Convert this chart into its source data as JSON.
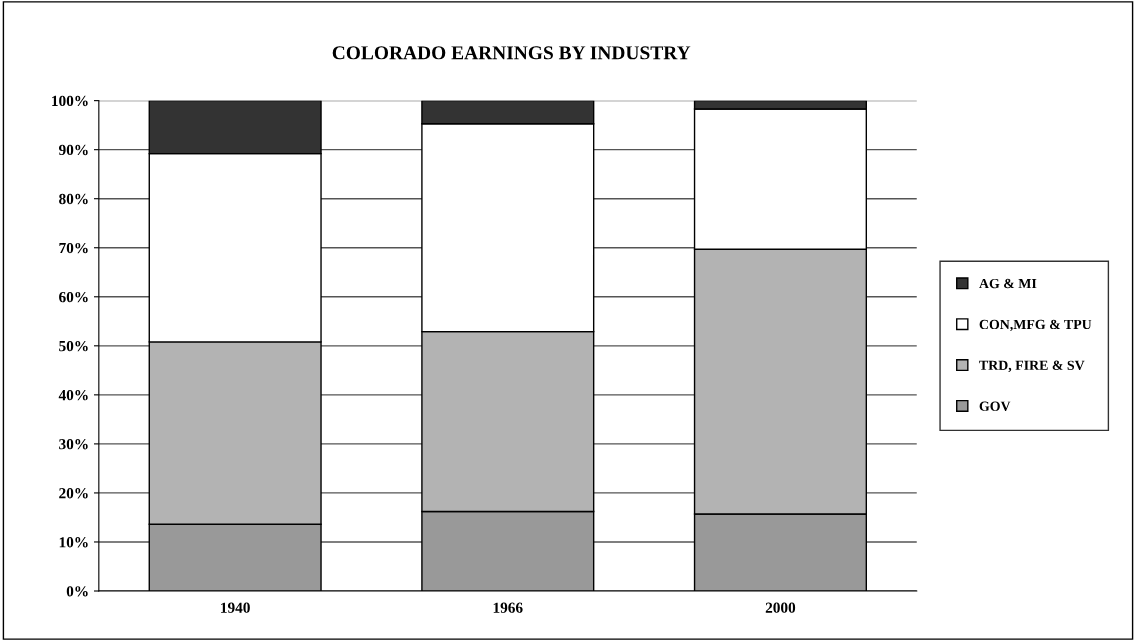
{
  "chart_data": {
    "type": "bar",
    "title": "COLORADO EARNINGS BY INDUSTRY",
    "categories": [
      "1940",
      "1966",
      "2000"
    ],
    "stacked": true,
    "series": [
      {
        "name": "GOV",
        "color": "#999999",
        "values": [
          13.6,
          16.2,
          15.7
        ]
      },
      {
        "name": "TRD, FIRE & SV",
        "color": "#b3b3b3",
        "values": [
          37.2,
          36.7,
          54.0
        ]
      },
      {
        "name": "CON,MFG & TPU",
        "color": "#ffffff",
        "values": [
          38.4,
          42.4,
          28.6
        ]
      },
      {
        "name": "AG & MI",
        "color": "#333333",
        "values": [
          10.8,
          4.7,
          1.7
        ]
      }
    ],
    "ylim": [
      0,
      100
    ],
    "yticks": [
      {
        "value": 0,
        "label": "0%"
      },
      {
        "value": 10,
        "label": "10%"
      },
      {
        "value": 20,
        "label": "20%"
      },
      {
        "value": 30,
        "label": "30%"
      },
      {
        "value": 40,
        "label": "40%"
      },
      {
        "value": 50,
        "label": "50%"
      },
      {
        "value": 60,
        "label": "60%"
      },
      {
        "value": 70,
        "label": "70%"
      },
      {
        "value": 80,
        "label": "80%"
      },
      {
        "value": 90,
        "label": "90%"
      },
      {
        "value": 100,
        "label": "100%"
      }
    ],
    "grid": "y",
    "legend": "right"
  }
}
